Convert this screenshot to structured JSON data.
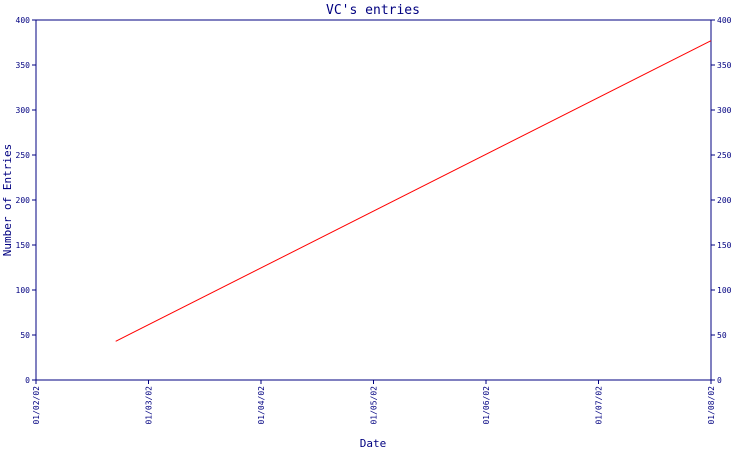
{
  "chart_data": {
    "type": "line",
    "title": "VC's entries",
    "xlabel": "Date",
    "ylabel": "Number of Entries",
    "x_ticks": [
      "01/02/02",
      "01/03/02",
      "01/04/02",
      "01/05/02",
      "01/06/02",
      "01/07/02",
      "01/08/02"
    ],
    "y_ticks": [
      0,
      50,
      100,
      150,
      200,
      250,
      300,
      350,
      400
    ],
    "ylim": [
      0,
      400
    ],
    "xlim": [
      "2002-01-02",
      "2002-01-08"
    ],
    "grid": false,
    "right_axis": true,
    "series": [
      {
        "color": "#ff0000",
        "x": [
          "2002-01-02T17:00",
          "2002-01-08T00:00"
        ],
        "y": [
          43,
          377
        ]
      }
    ]
  },
  "colors": {
    "axis": "#000080",
    "title": "#000080",
    "line": "#ff0000"
  }
}
